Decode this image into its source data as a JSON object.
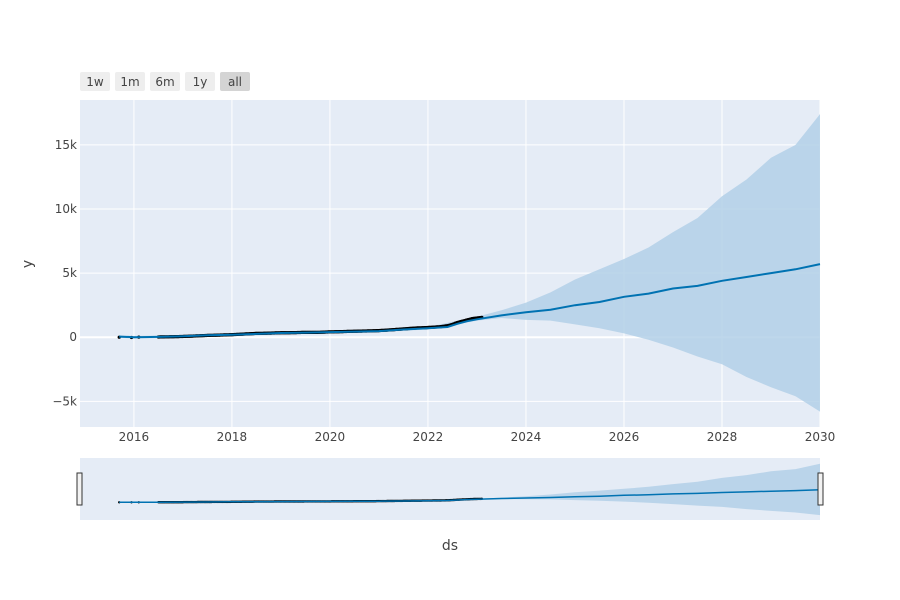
{
  "range_selector": {
    "buttons": [
      {
        "label": "1w",
        "active": false
      },
      {
        "label": "1m",
        "active": false
      },
      {
        "label": "6m",
        "active": false
      },
      {
        "label": "1y",
        "active": false
      },
      {
        "label": "all",
        "active": true
      }
    ]
  },
  "colors": {
    "plot_bg": "#e5ecf6",
    "grid": "#ffffff",
    "forecast_line": "#0072b2",
    "uncertainty_band": "#b3d0e8",
    "actual_points": "#000000"
  },
  "chart_data": {
    "type": "line",
    "xlabel": "ds",
    "ylabel": "y",
    "xlim": [
      2014.9,
      2030.0
    ],
    "ylim": [
      -7000,
      18500
    ],
    "x_ticks": [
      2016,
      2018,
      2020,
      2022,
      2024,
      2026,
      2028,
      2030
    ],
    "x_tick_labels": [
      "2016",
      "2018",
      "2020",
      "2022",
      "2024",
      "2026",
      "2028",
      "2030"
    ],
    "y_ticks": [
      -5000,
      0,
      5000,
      10000,
      15000
    ],
    "y_tick_labels": [
      "−5k",
      "0",
      "5k",
      "10k",
      "15k"
    ],
    "grid": true,
    "legend": "none",
    "series": [
      {
        "kind": "forecast",
        "x": [
          2015.7,
          2016.0,
          2016.5,
          2017.0,
          2017.5,
          2018.0,
          2018.5,
          2019.0,
          2019.5,
          2020.0,
          2020.5,
          2021.0,
          2021.5,
          2022.0,
          2022.4,
          2022.6,
          2022.8,
          2023.0,
          2023.5,
          2024.0,
          2024.5,
          2025.0,
          2025.5,
          2026.0,
          2026.5,
          2027.0,
          2027.5,
          2028.0,
          2028.5,
          2029.0,
          2029.5,
          2030.0
        ],
        "y": [
          50,
          0,
          30,
          80,
          150,
          200,
          260,
          330,
          360,
          400,
          440,
          480,
          600,
          700,
          800,
          1050,
          1250,
          1400,
          1700,
          1950,
          2150,
          2500,
          2750,
          3150,
          3400,
          3800,
          4000,
          4400,
          4700,
          5000,
          5300,
          5700
        ]
      },
      {
        "kind": "uncertainty_upper",
        "x": [
          2015.7,
          2016.0,
          2016.5,
          2017.0,
          2017.5,
          2018.0,
          2018.5,
          2019.0,
          2019.5,
          2020.0,
          2020.5,
          2021.0,
          2021.5,
          2022.0,
          2022.5,
          2023.0,
          2023.5,
          2024.0,
          2024.5,
          2025.0,
          2025.5,
          2026.0,
          2026.5,
          2027.0,
          2027.5,
          2028.0,
          2028.5,
          2029.0,
          2029.5,
          2030.0
        ],
        "y": [
          150,
          100,
          130,
          180,
          250,
          300,
          360,
          430,
          460,
          500,
          540,
          580,
          700,
          800,
          1200,
          1600,
          2100,
          2700,
          3500,
          4500,
          5300,
          6100,
          7000,
          8200,
          9300,
          11000,
          12300,
          14000,
          15000,
          17400
        ]
      },
      {
        "kind": "uncertainty_lower",
        "x": [
          2015.7,
          2016.0,
          2016.5,
          2017.0,
          2017.5,
          2018.0,
          2018.5,
          2019.0,
          2019.5,
          2020.0,
          2020.5,
          2021.0,
          2021.5,
          2022.0,
          2022.5,
          2023.0,
          2023.5,
          2024.0,
          2024.5,
          2025.0,
          2025.5,
          2026.0,
          2026.5,
          2027.0,
          2027.5,
          2028.0,
          2028.5,
          2029.0,
          2029.5,
          2030.0
        ],
        "y": [
          -50,
          -100,
          -70,
          -20,
          50,
          100,
          160,
          230,
          260,
          300,
          340,
          380,
          500,
          600,
          950,
          1300,
          1500,
          1350,
          1300,
          1000,
          700,
          300,
          -200,
          -800,
          -1500,
          -2100,
          -3100,
          -3900,
          -4600,
          -5800
        ]
      },
      {
        "kind": "actual",
        "x": [
          2015.7,
          2015.95,
          2016.1,
          2016.5,
          2016.75,
          2017.0,
          2017.25,
          2017.5,
          2017.75,
          2018.0,
          2018.25,
          2018.5,
          2018.75,
          2019.0,
          2019.25,
          2019.5,
          2019.75,
          2020.0,
          2020.25,
          2020.5,
          2020.75,
          2021.0,
          2021.25,
          2021.5,
          2021.75,
          2022.0,
          2022.25,
          2022.4,
          2022.5,
          2022.6,
          2022.7,
          2022.8,
          2022.9,
          2023.0,
          2023.1
        ],
        "y": [
          0,
          -20,
          10,
          20,
          40,
          60,
          100,
          140,
          170,
          200,
          250,
          300,
          320,
          350,
          360,
          380,
          380,
          420,
          440,
          470,
          490,
          520,
          580,
          650,
          720,
          760,
          820,
          900,
          1000,
          1150,
          1250,
          1350,
          1450,
          1500,
          1550
        ]
      }
    ]
  }
}
